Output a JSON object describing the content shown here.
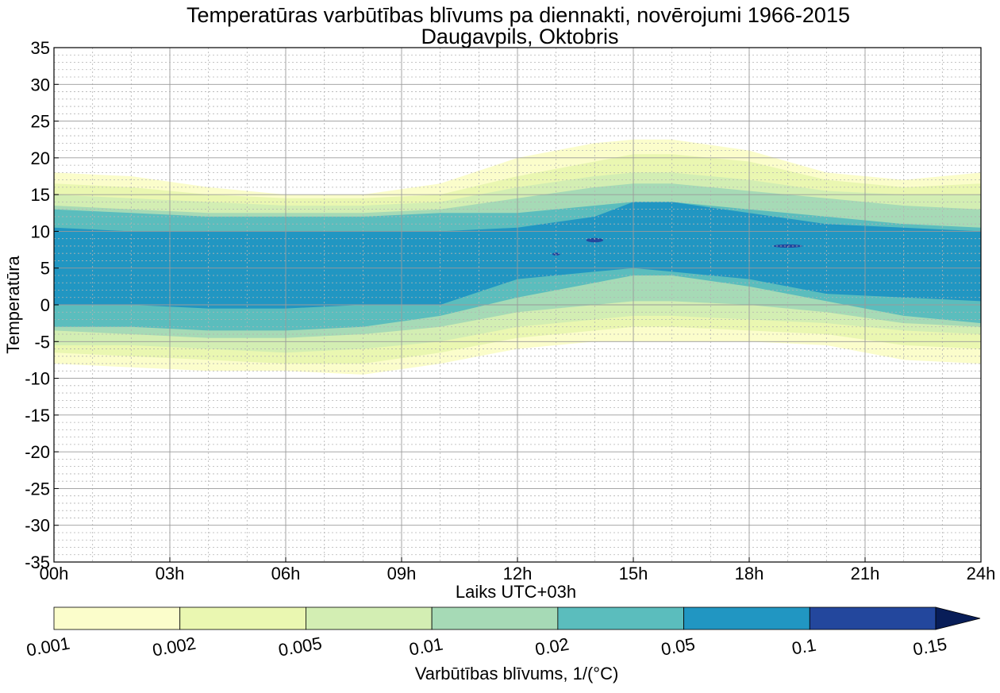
{
  "chart_data": {
    "type": "contourf",
    "title": "Temperatūras varbūtības blīvums pa diennakti, novērojumi 1966-2015",
    "subtitle": "Daugavpils, Oktobris",
    "xlabel": "Laiks UTC+03h",
    "ylabel": "Temperatūra",
    "xlim": [
      0,
      24
    ],
    "ylim": [
      -35,
      35
    ],
    "xticks": [
      0,
      3,
      6,
      9,
      12,
      15,
      18,
      21,
      24
    ],
    "xtick_labels": [
      "00h",
      "03h",
      "06h",
      "09h",
      "12h",
      "15h",
      "18h",
      "21h",
      "24h"
    ],
    "yticks": [
      -35,
      -30,
      -25,
      -20,
      -15,
      -10,
      -5,
      0,
      5,
      10,
      15,
      20,
      25,
      30,
      35
    ],
    "ytick_labels": [
      "-35",
      "-30",
      "-25",
      "-20",
      "-15",
      "-10",
      "-5",
      "0",
      "5",
      "10",
      "15",
      "20",
      "25",
      "30",
      "35"
    ],
    "grid": true,
    "hours": [
      0,
      2,
      4,
      6,
      8,
      10,
      12,
      14,
      15,
      16,
      18,
      20,
      22,
      24
    ],
    "levels": [
      {
        "min": 0.001,
        "color": "#fbfdcb",
        "upper": [
          18,
          17.5,
          16,
          15,
          15,
          16.5,
          20,
          22,
          22.5,
          22.5,
          21,
          18,
          17,
          18
        ],
        "lower": [
          -8,
          -8.5,
          -9,
          -9,
          -9.5,
          -8,
          -6,
          -5,
          -5,
          -5,
          -5,
          -5.5,
          -7.5,
          -8
        ]
      },
      {
        "min": 0.002,
        "color": "#eaf7b1",
        "upper": [
          16.5,
          16,
          15,
          14.5,
          14.5,
          15,
          17.5,
          19.5,
          20.5,
          20.5,
          19.5,
          17,
          16,
          16.5
        ],
        "lower": [
          -6.5,
          -7,
          -7.5,
          -8,
          -8,
          -6.5,
          -4.5,
          -3.5,
          -3,
          -3,
          -3.5,
          -4,
          -5.5,
          -6
        ]
      },
      {
        "min": 0.005,
        "color": "#d3eeb3",
        "upper": [
          15,
          14.5,
          14,
          13.5,
          13.5,
          14,
          16,
          17.5,
          18,
          18,
          17,
          15.5,
          15,
          15
        ],
        "lower": [
          -5.5,
          -5.5,
          -6,
          -6.5,
          -6,
          -5,
          -3,
          -2,
          -1.5,
          -1.5,
          -2,
          -2.5,
          -3.5,
          -4
        ]
      },
      {
        "min": 0.01,
        "color": "#a6dab6",
        "upper": [
          13.5,
          13,
          12.5,
          12.5,
          12.5,
          13,
          14.5,
          16,
          16.5,
          16.5,
          15.5,
          14.5,
          13.5,
          13
        ],
        "lower": [
          -3.5,
          -4,
          -4.5,
          -4.5,
          -4,
          -3,
          -1,
          0,
          0.5,
          0.5,
          0,
          -1,
          -2.5,
          -3
        ]
      },
      {
        "min": 0.02,
        "color": "#5bbdbd",
        "upper": [
          13,
          12.5,
          12,
          12,
          12,
          12.5,
          12.5,
          13.5,
          14,
          14,
          13,
          12,
          11,
          10.5
        ],
        "lower": [
          -3,
          -3,
          -3.5,
          -3.5,
          -3,
          -1.5,
          1,
          3,
          4,
          4,
          2.5,
          0.5,
          -1.5,
          -2.5
        ]
      },
      {
        "min": 0.05,
        "color": "#2196c2",
        "upper": [
          10.5,
          10,
          10,
          10,
          10,
          10,
          10.5,
          12,
          14,
          14,
          12.5,
          11,
          10.5,
          10
        ],
        "lower": [
          0,
          0,
          -0.5,
          -0.5,
          0,
          0,
          3.5,
          4.5,
          5,
          4.5,
          3.5,
          1.5,
          1,
          0.5
        ]
      }
    ],
    "spots": [
      {
        "x": 14.0,
        "y": 8.8,
        "rx": 0.22,
        "ry": 0.3,
        "color": "#23479d",
        "level": 0.1
      },
      {
        "x": 13.0,
        "y": 6.9,
        "rx": 0.1,
        "ry": 0.2,
        "color": "#23479d",
        "level": 0.1
      },
      {
        "x": 19.0,
        "y": 8.0,
        "rx": 0.38,
        "ry": 0.22,
        "color": "#23479d",
        "level": 0.1
      }
    ],
    "colorbar": {
      "label": "Varbūtības blīvums, 1/(°C)",
      "ticks": [
        "0.001",
        "0.002",
        "0.005",
        "0.01",
        "0.02",
        "0.05",
        "0.1",
        "0.15"
      ],
      "colors": [
        "#fbfdcb",
        "#eaf7b1",
        "#d3eeb3",
        "#a6dab6",
        "#5bbdbd",
        "#2196c2",
        "#23479d"
      ],
      "extend_color": "#081d58",
      "extend": "max"
    }
  }
}
